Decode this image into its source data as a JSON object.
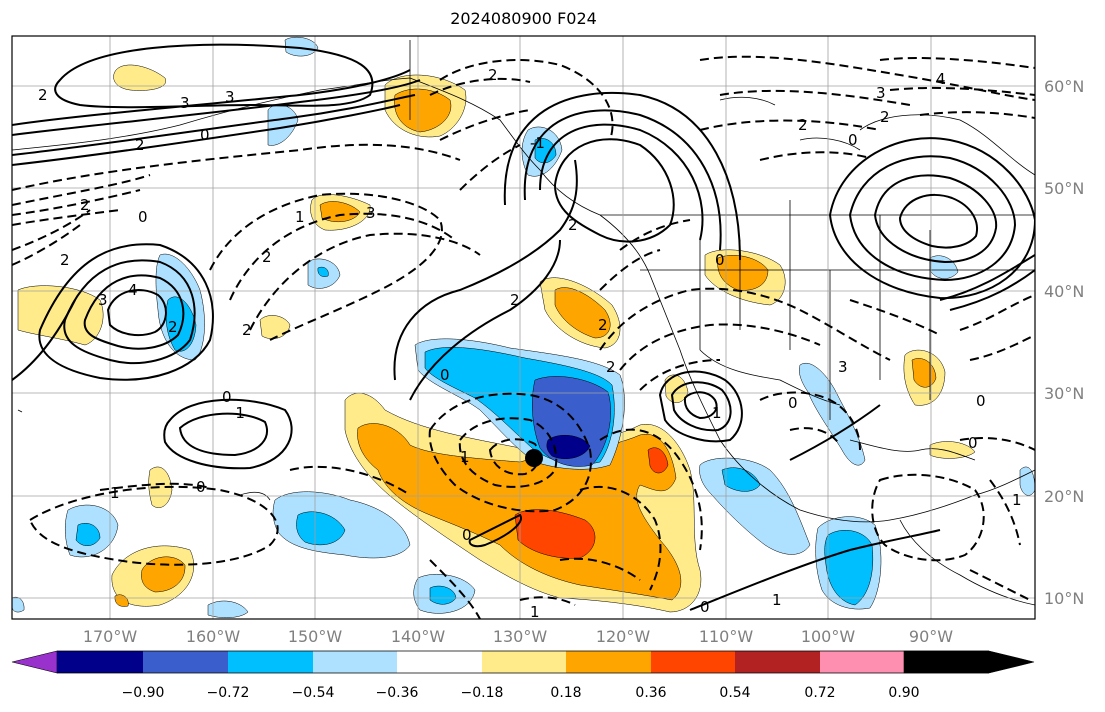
{
  "title": "2024080900 F024",
  "longitude_labels": [
    "170°W",
    "160°W",
    "150°W",
    "140°W",
    "130°W",
    "120°W",
    "110°W",
    "100°W",
    "90°W"
  ],
  "latitude_labels": [
    "60°N",
    "50°N",
    "40°N",
    "30°N",
    "20°N",
    "10°N"
  ],
  "colorbar": {
    "tick_labels": [
      "−0.90",
      "−0.72",
      "−0.54",
      "−0.36",
      "−0.18",
      "0.18",
      "0.36",
      "0.54",
      "0.72",
      "0.90"
    ],
    "colors": [
      "#9932CC",
      "#00008B",
      "#3A5FCD",
      "#00BFFF",
      "#ADE1FF",
      "#FFFFFF",
      "#FFEB8A",
      "#FFA500",
      "#FF4500",
      "#B22222",
      "#FF8FB0"
    ]
  },
  "contour_labels": [
    "2",
    "3",
    "2",
    "0",
    "3",
    "2",
    "2",
    "3",
    "4",
    "2",
    "0",
    "2",
    "1",
    "2",
    "3",
    "0",
    "2",
    "-1",
    "0",
    "1",
    "1",
    "0",
    "2",
    "2",
    "0",
    "2",
    "1",
    "2",
    "2",
    "3",
    "0",
    "1",
    "0",
    "1",
    "0",
    "0",
    "-1",
    "1",
    "4",
    "3",
    "2",
    "0",
    "0"
  ],
  "marker": {
    "name": "reference point",
    "color": "#000000"
  }
}
